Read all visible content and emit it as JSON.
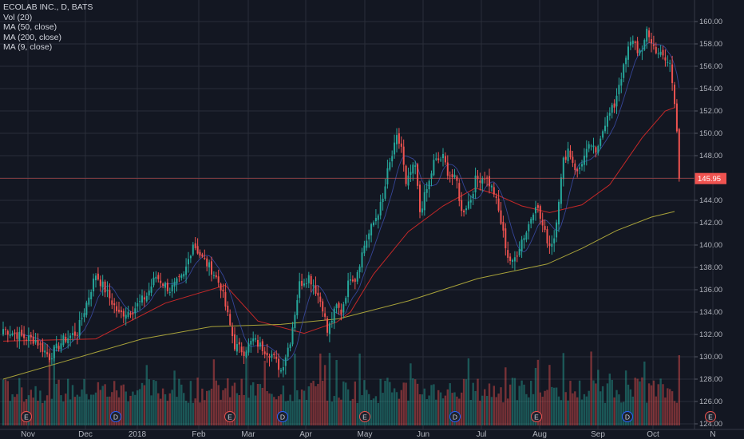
{
  "legend": {
    "symbol": "ECOLAB INC., D, BATS",
    "volume": "Vol (20)",
    "ma50": "MA (50, close)",
    "ma200": "MA (200, close)",
    "ma9": "MA (9, close)"
  },
  "colors": {
    "background": "#131722",
    "up": "#26a69a",
    "down": "#ef5350",
    "ma50": "#c62828",
    "ma200": "#a8a23a",
    "ma9": "#3f51b5",
    "grid": "#2a2e39",
    "price_label": "#ef5350"
  },
  "chart_data": {
    "type": "candlestick",
    "title": "ECOLAB INC., D, BATS",
    "y_axis": {
      "min": 124,
      "max": 160,
      "ticks": [
        124,
        126,
        128,
        130,
        132,
        134,
        136,
        138,
        140,
        142,
        144,
        146,
        148,
        150,
        152,
        154,
        156,
        158,
        160
      ],
      "position": "right"
    },
    "last_price": 145.95,
    "x_axis": {
      "labels": [
        "Nov",
        "Dec",
        "2018",
        "Feb",
        "Mar",
        "Apr",
        "May",
        "Jun",
        "Jul",
        "Aug",
        "Sep",
        "Oct",
        "N"
      ]
    },
    "events": [
      "E",
      "D",
      "E",
      "D",
      "E",
      "D",
      "E",
      "D",
      "E"
    ],
    "candle_anchors_close": [
      [
        0,
        132.5
      ],
      [
        8,
        131.8
      ],
      [
        14,
        131.5
      ],
      [
        20,
        130.0
      ],
      [
        26,
        131.5
      ],
      [
        32,
        132.2
      ],
      [
        36,
        134.8
      ],
      [
        40,
        137.4
      ],
      [
        44,
        136.0
      ],
      [
        50,
        133.8
      ],
      [
        56,
        134.2
      ],
      [
        62,
        135.5
      ],
      [
        66,
        137.2
      ],
      [
        72,
        136.0
      ],
      [
        78,
        137.2
      ],
      [
        82,
        140.2
      ],
      [
        86,
        138.8
      ],
      [
        90,
        137.8
      ],
      [
        94,
        136.3
      ],
      [
        100,
        131.0
      ],
      [
        104,
        130.5
      ],
      [
        108,
        131.5
      ],
      [
        112,
        130.8
      ],
      [
        116,
        130.2
      ],
      [
        120,
        128.8
      ],
      [
        124,
        131.5
      ],
      [
        128,
        136.5
      ],
      [
        132,
        137.2
      ],
      [
        134,
        136.5
      ],
      [
        138,
        134.5
      ],
      [
        140,
        132.2
      ],
      [
        144,
        134.5
      ],
      [
        146,
        134.0
      ],
      [
        150,
        137.3
      ],
      [
        152,
        137.0
      ],
      [
        156,
        140.0
      ],
      [
        160,
        142.0
      ],
      [
        164,
        144.0
      ],
      [
        166,
        146.5
      ],
      [
        170,
        149.5
      ],
      [
        172,
        148.8
      ],
      [
        174,
        145.2
      ],
      [
        176,
        146.5
      ],
      [
        178,
        147.0
      ],
      [
        180,
        143.0
      ],
      [
        184,
        145.6
      ],
      [
        186,
        147.4
      ],
      [
        190,
        147.8
      ],
      [
        192,
        146.6
      ],
      [
        196,
        145.6
      ],
      [
        198,
        142.9
      ],
      [
        202,
        144.2
      ],
      [
        204,
        145.8
      ],
      [
        208,
        146.2
      ],
      [
        210,
        145.5
      ],
      [
        212,
        144.7
      ],
      [
        214,
        143.0
      ],
      [
        218,
        139.0
      ],
      [
        220,
        138.3
      ],
      [
        224,
        140.5
      ],
      [
        226,
        141.2
      ],
      [
        230,
        143.8
      ],
      [
        234,
        141.0
      ],
      [
        236,
        140.0
      ],
      [
        238,
        140.7
      ],
      [
        240,
        144.2
      ],
      [
        242,
        147.5
      ],
      [
        244,
        148.6
      ],
      [
        248,
        146.4
      ],
      [
        250,
        147.5
      ],
      [
        254,
        149.0
      ],
      [
        256,
        148.0
      ],
      [
        258,
        149.9
      ],
      [
        260,
        151.0
      ],
      [
        264,
        152.5
      ],
      [
        266,
        154.5
      ],
      [
        268,
        155.8
      ],
      [
        270,
        157.5
      ],
      [
        272,
        158.5
      ],
      [
        274,
        157.5
      ],
      [
        276,
        157.0
      ],
      [
        278,
        159.5
      ],
      [
        280,
        158.0
      ],
      [
        282,
        157.5
      ],
      [
        284,
        157.0
      ],
      [
        286,
        156.5
      ],
      [
        288,
        156.2
      ],
      [
        290,
        153.0
      ],
      [
        291,
        150.5
      ],
      [
        292,
        145.95
      ]
    ],
    "moving_averages": [
      {
        "name": "MA (50, close)",
        "color": "#c62828",
        "points": [
          [
            0,
            131.4
          ],
          [
            40,
            131.6
          ],
          [
            70,
            134.8
          ],
          [
            96,
            136.4
          ],
          [
            110,
            133.2
          ],
          [
            130,
            132.1
          ],
          [
            144,
            133.1
          ],
          [
            150,
            134.0
          ],
          [
            160,
            137.4
          ],
          [
            175,
            141.2
          ],
          [
            190,
            143.5
          ],
          [
            204,
            145.1
          ],
          [
            212,
            144.6
          ],
          [
            224,
            143.5
          ],
          [
            236,
            142.9
          ],
          [
            250,
            143.6
          ],
          [
            262,
            145.4
          ],
          [
            276,
            149.6
          ],
          [
            286,
            152.0
          ],
          [
            290,
            152.3
          ]
        ]
      },
      {
        "name": "MA (200, close)",
        "color": "#a8a23a",
        "points": [
          [
            0,
            128.0
          ],
          [
            30,
            129.8
          ],
          [
            60,
            131.6
          ],
          [
            90,
            132.7
          ],
          [
            120,
            132.9
          ],
          [
            145,
            133.4
          ],
          [
            175,
            135.0
          ],
          [
            205,
            137.0
          ],
          [
            235,
            138.3
          ],
          [
            250,
            139.7
          ],
          [
            265,
            141.3
          ],
          [
            280,
            142.5
          ],
          [
            290,
            143.0
          ]
        ]
      }
    ]
  },
  "price_label": "145.95",
  "event_markers": [
    {
      "letter": "E",
      "type": "earnings"
    },
    {
      "letter": "D",
      "type": "dividend"
    },
    {
      "letter": "E",
      "type": "earnings"
    },
    {
      "letter": "D",
      "type": "dividend"
    },
    {
      "letter": "E",
      "type": "earnings"
    },
    {
      "letter": "D",
      "type": "dividend"
    },
    {
      "letter": "E",
      "type": "earnings"
    },
    {
      "letter": "D",
      "type": "dividend"
    },
    {
      "letter": "E",
      "type": "earnings"
    }
  ]
}
